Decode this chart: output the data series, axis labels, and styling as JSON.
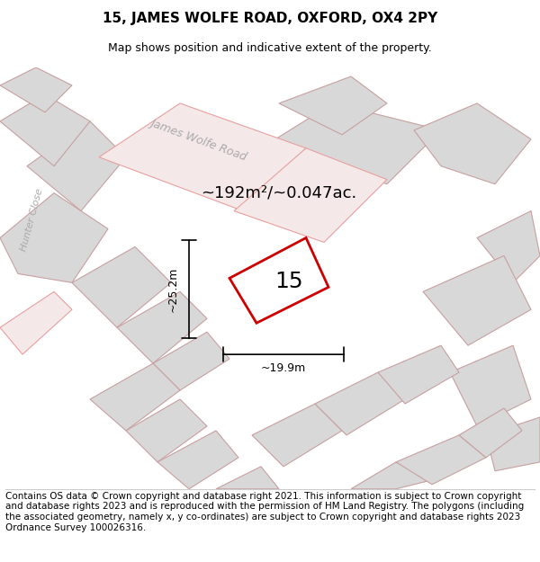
{
  "title_line1": "15, JAMES WOLFE ROAD, OXFORD, OX4 2PY",
  "title_line2": "Map shows position and indicative extent of the property.",
  "footer_text": "Contains OS data © Crown copyright and database right 2021. This information is subject to Crown copyright and database rights 2023 and is reproduced with the permission of HM Land Registry. The polygons (including the associated geometry, namely x, y co-ordinates) are subject to Crown copyright and database rights 2023 Ordnance Survey 100026316.",
  "area_label": "~192m²/~0.047ac.",
  "number_label": "15",
  "dim_width": "~19.9m",
  "dim_height": "~25.2m",
  "bg_color": "#f0f0f0",
  "map_bg": "#e8e8e8",
  "road_color": "#f5c0c0",
  "property_outline_color": "#cc0000",
  "block_color": "#d8d8d8",
  "block_outline": "#c8a0a0",
  "street_label1": "James Wolfe Road",
  "street_label2": "Hunter Close",
  "title_fontsize": 11,
  "subtitle_fontsize": 9,
  "footer_fontsize": 7.5
}
